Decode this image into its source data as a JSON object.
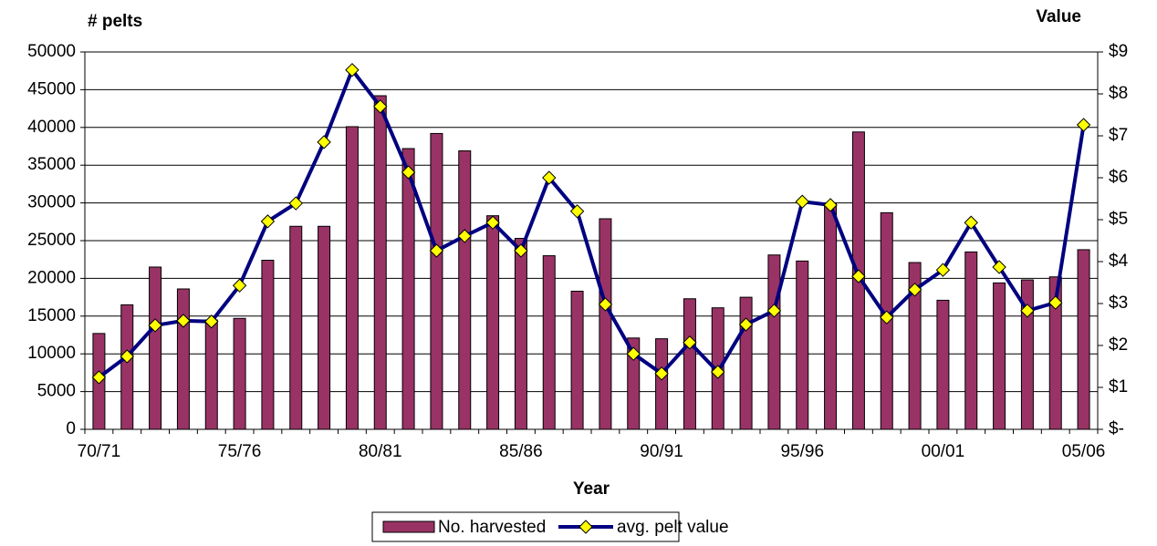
{
  "chart_data": {
    "type": "bar-line",
    "y_label": "# pelts",
    "y2_label": "Value",
    "x_label": "Year",
    "categories": [
      "70/71",
      null,
      null,
      null,
      null,
      "75/76",
      null,
      null,
      null,
      null,
      "80/81",
      null,
      null,
      null,
      null,
      "85/86",
      null,
      null,
      null,
      null,
      "90/91",
      null,
      null,
      null,
      null,
      "95/96",
      null,
      null,
      null,
      null,
      "00/01",
      null,
      null,
      null,
      null,
      "05/06"
    ],
    "series": [
      {
        "name": "No. harvested",
        "color": "#993366",
        "values": [
          12700,
          16500,
          21500,
          18600,
          14500,
          14700,
          22400,
          26900,
          26900,
          40100,
          44200,
          37200,
          39200,
          36900,
          28300,
          25300,
          23000,
          18300,
          27900,
          12100,
          12000,
          17300,
          16100,
          17500,
          23100,
          22300,
          30000,
          39400,
          28700,
          22100,
          17100,
          23500,
          19400,
          19800,
          20200,
          23800
        ]
      },
      {
        "name": "avg. pelt value",
        "color": "#000080",
        "marker_color": "#ffff00",
        "axis": "y2",
        "values": [
          1.24,
          1.74,
          2.48,
          2.59,
          2.57,
          3.43,
          4.96,
          5.39,
          6.85,
          8.57,
          7.7,
          6.13,
          4.26,
          4.61,
          4.93,
          4.26,
          6.0,
          5.2,
          2.98,
          1.8,
          1.33,
          2.07,
          1.37,
          2.5,
          2.83,
          5.43,
          5.35,
          3.65,
          2.67,
          3.33,
          3.8,
          4.93,
          3.87,
          2.83,
          3.02,
          7.26
        ]
      }
    ],
    "ylim": [
      0,
      50000
    ],
    "yticks": [
      0,
      5000,
      10000,
      15000,
      20000,
      25000,
      30000,
      35000,
      40000,
      45000,
      50000
    ],
    "y2lim": [
      0,
      9
    ],
    "y2ticks": [
      {
        "value": 0,
        "label": "$-"
      },
      {
        "value": 1,
        "label": "$1"
      },
      {
        "value": 2,
        "label": "$2"
      },
      {
        "value": 3,
        "label": "$3"
      },
      {
        "value": 4,
        "label": "$4"
      },
      {
        "value": 5,
        "label": "$5"
      },
      {
        "value": 6,
        "label": "$6"
      },
      {
        "value": 7,
        "label": "$7"
      },
      {
        "value": 8,
        "label": "$8"
      },
      {
        "value": 9,
        "label": "$9"
      }
    ],
    "grid": true,
    "legend": "bottom"
  }
}
